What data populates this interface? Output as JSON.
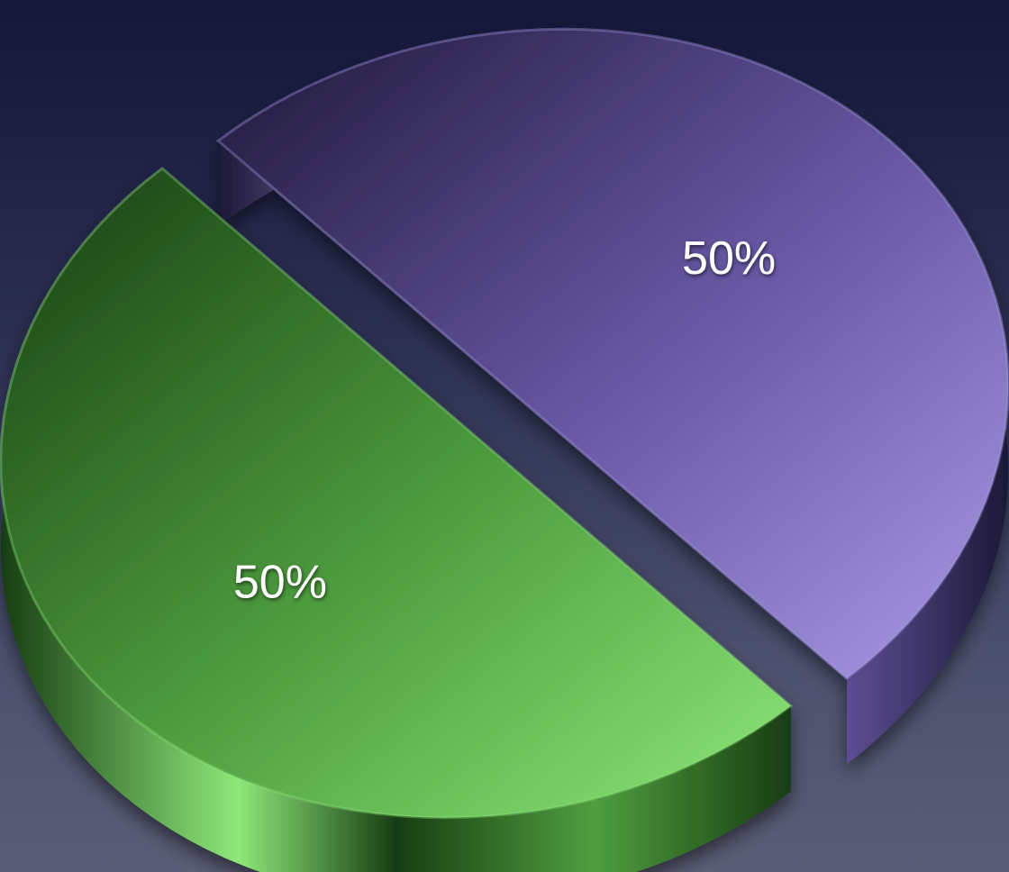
{
  "chart_data": {
    "type": "pie",
    "title": "",
    "slices": [
      {
        "value": 50,
        "label": "50%",
        "color": "#6a5aa8",
        "highlight": "#a99be6",
        "shade": "#1d1837"
      },
      {
        "value": 50,
        "label": "50%",
        "color": "#4f9e3f",
        "highlight": "#8ee87a",
        "shade": "#173d12"
      }
    ]
  }
}
